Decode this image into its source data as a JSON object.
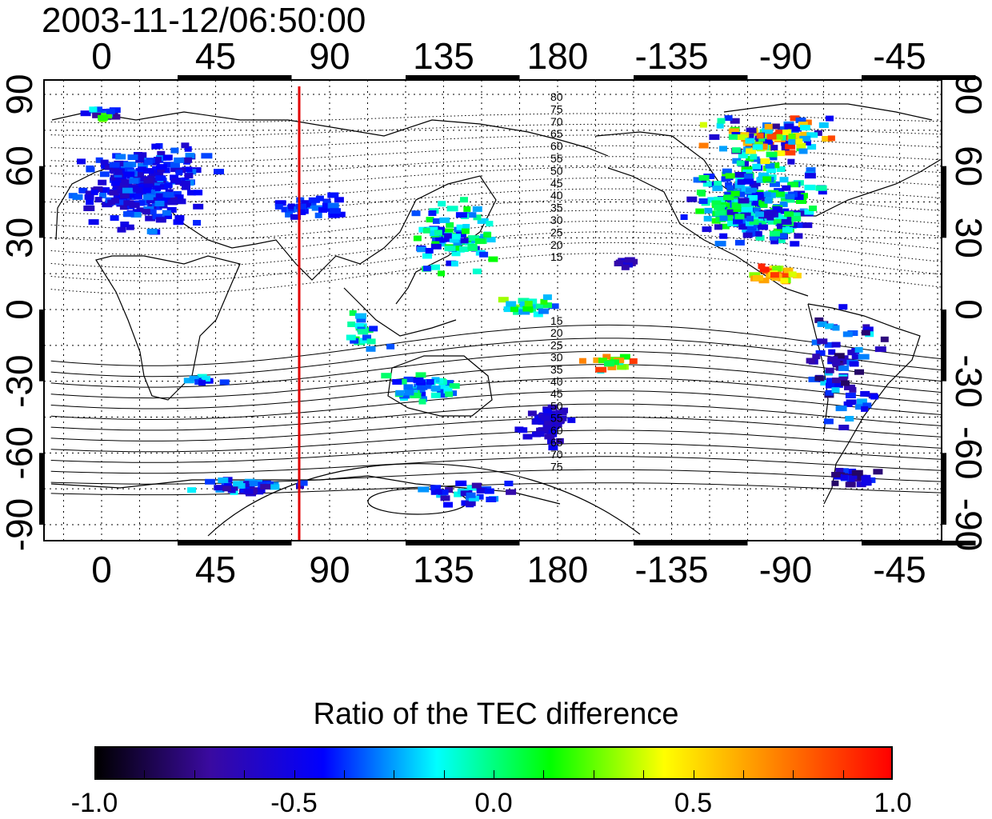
{
  "title": "2003-11-12/06:50:00",
  "colorbar": {
    "label": "Ratio of the TEC difference",
    "ticks": [
      "-1.0",
      "-0.5",
      "0.0",
      "0.5",
      "1.0"
    ],
    "range": [
      -1.0,
      1.0
    ],
    "colormap": [
      "#000000",
      "#3a0aa0",
      "#0000ff",
      "#00ffff",
      "#00ff00",
      "#ffff00",
      "#ff8000",
      "#ff0000"
    ]
  },
  "map": {
    "lon_ticks_top": [
      "0",
      "45",
      "90",
      "135",
      "180",
      "-135",
      "-90",
      "-45"
    ],
    "lon_ticks_bottom": [
      "0",
      "45",
      "90",
      "135",
      "180",
      "-135",
      "-90",
      "-45"
    ],
    "lat_ticks_left": [
      "90",
      "60",
      "30",
      "0",
      "-30",
      "-60",
      "-90"
    ],
    "lat_ticks_right": [
      "90",
      "60",
      "30",
      "0",
      "-30",
      "-60",
      "-90"
    ],
    "lon_range": [
      -20,
      340
    ],
    "lat_range": [
      -95,
      95
    ],
    "meridian_line": {
      "longitude": 78,
      "color": "#e00000"
    },
    "contour_labels_north": [
      "80",
      "75",
      "70",
      "65",
      "60",
      "55",
      "50",
      "45",
      "40",
      "35",
      "30",
      "25",
      "20",
      "15"
    ],
    "contour_labels_south": [
      "15",
      "20",
      "25",
      "30",
      "35",
      "40",
      "45",
      "50",
      "55",
      "60",
      "65",
      "70",
      "75"
    ]
  }
}
